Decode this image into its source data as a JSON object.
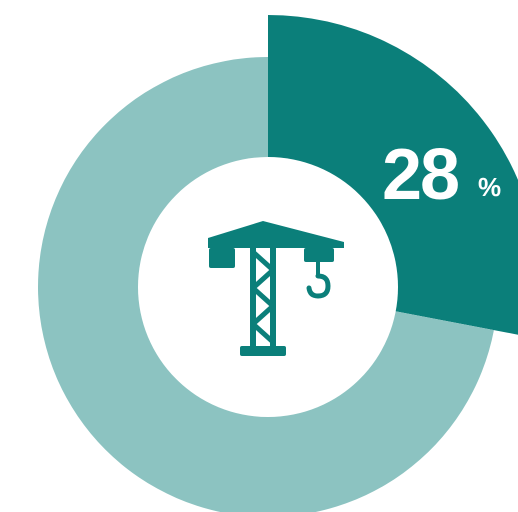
{
  "chart_data": {
    "type": "pie",
    "style": "donut",
    "slices": [
      {
        "value": 28,
        "color": "#0b7f7a",
        "highlighted": true
      },
      {
        "value": 72,
        "color": "#8cc3c1",
        "highlighted": false
      }
    ],
    "label": {
      "value": "28",
      "unit": "%"
    }
  },
  "center_icon": "construction-crane-icon",
  "colors": {
    "accent": "#0b7f7a",
    "muted": "#8cc3c1",
    "background": "#ffffff"
  }
}
